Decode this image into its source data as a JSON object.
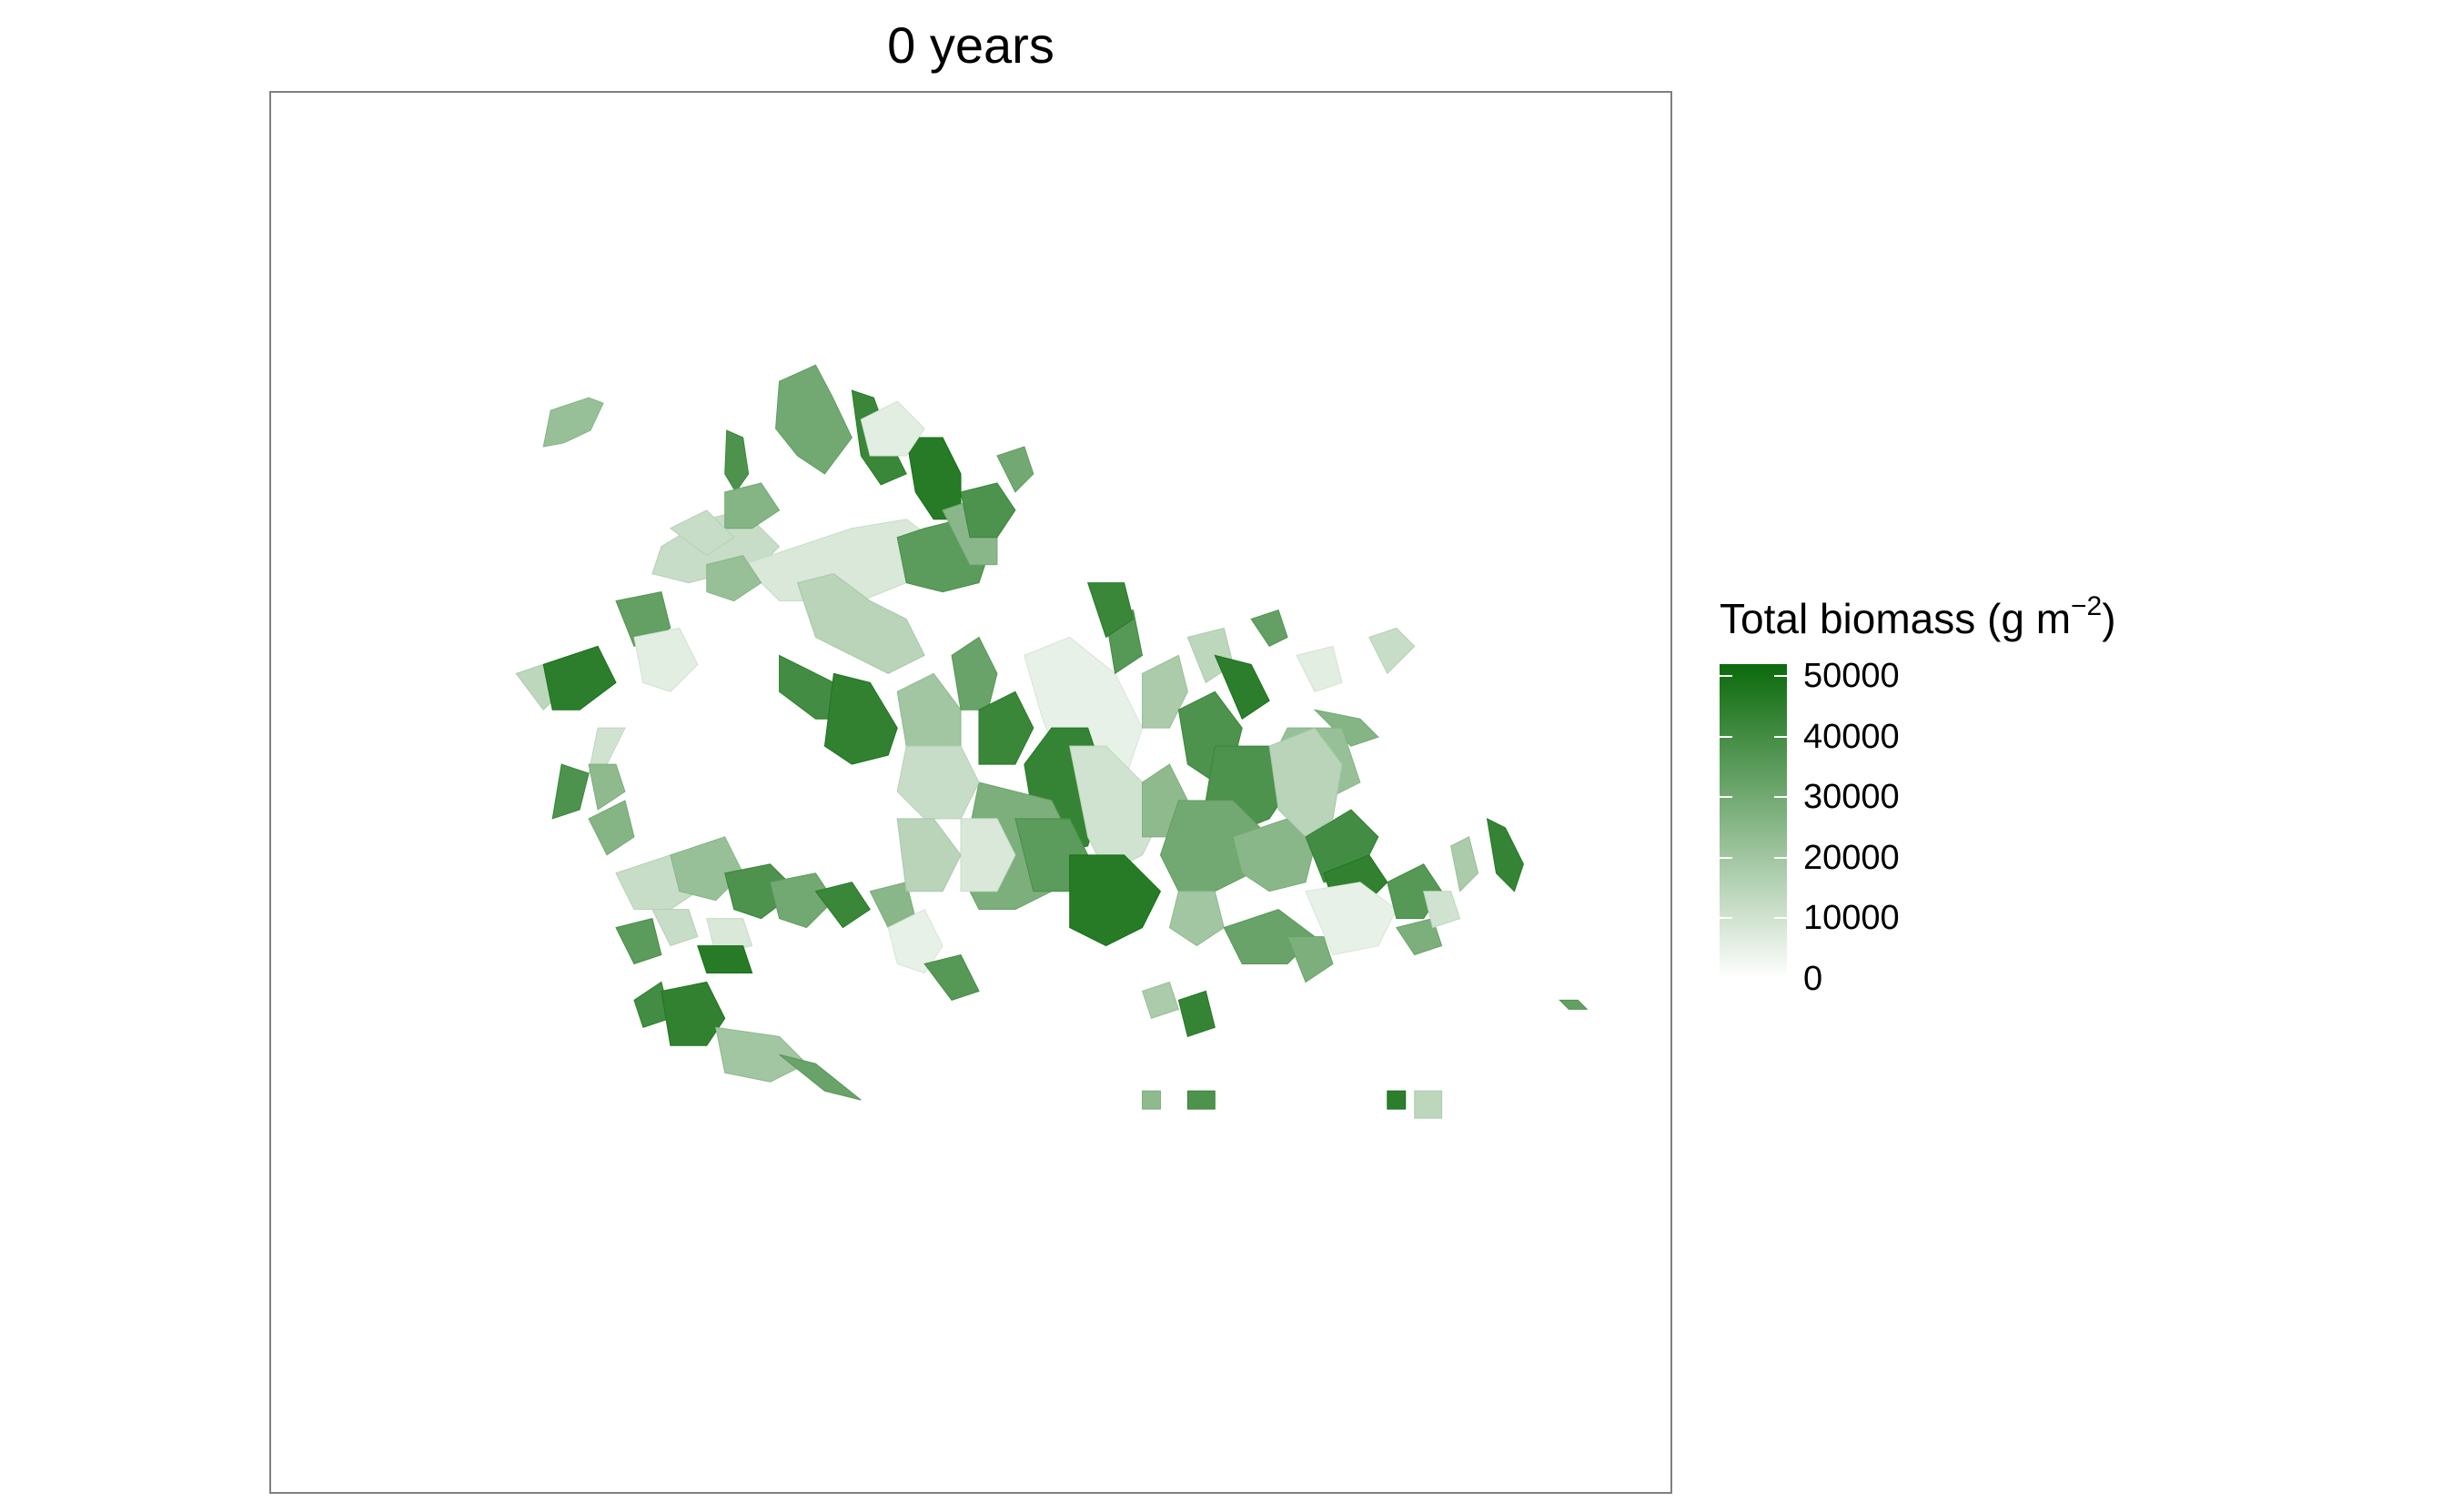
{
  "map": {
    "title": "0 years",
    "panel_border_color": "#7f7f7f",
    "background_color": "#ffffff"
  },
  "legend": {
    "title_main": "Total biomass (g m",
    "title_sup": "−2",
    "title_close": ")",
    "scale_min": 0,
    "scale_max": 52000,
    "color_low": "#ffffff",
    "color_high": "#0b6a0b",
    "ticks": [
      {
        "value": 50000,
        "label": "50000"
      },
      {
        "value": 40000,
        "label": "40000"
      },
      {
        "value": 30000,
        "label": "30000"
      },
      {
        "value": 20000,
        "label": "20000"
      },
      {
        "value": 10000,
        "label": "10000"
      },
      {
        "value": 0,
        "label": "0"
      }
    ]
  },
  "chart_data": {
    "type": "heatmap",
    "title": "0 years",
    "legend_title": "Total biomass (g m−2)",
    "legend_placement": "right",
    "value_range": [
      0,
      52000
    ],
    "patches": [
      {
        "biomass": 22000
      },
      {
        "biomass": 38000
      },
      {
        "biomass": 30000
      },
      {
        "biomass": 42000
      },
      {
        "biomass": 12000
      },
      {
        "biomass": 8000
      },
      {
        "biomass": 35000
      },
      {
        "biomass": 46000
      },
      {
        "biomass": 25000
      },
      {
        "biomass": 15000
      },
      {
        "biomass": 40000
      },
      {
        "biomass": 44000
      },
      {
        "biomass": 20000
      },
      {
        "biomass": 32000
      },
      {
        "biomass": 5000
      },
      {
        "biomass": 36000
      },
      {
        "biomass": 18000
      },
      {
        "biomass": 43000
      },
      {
        "biomass": 28000
      },
      {
        "biomass": 10000
      },
      {
        "biomass": 24000
      },
      {
        "biomass": 38000
      },
      {
        "biomass": 14000
      },
      {
        "biomass": 45000
      },
      {
        "biomass": 33000
      },
      {
        "biomass": 6000
      },
      {
        "biomass": 26000
      },
      {
        "biomass": 12000
      }
    ]
  }
}
